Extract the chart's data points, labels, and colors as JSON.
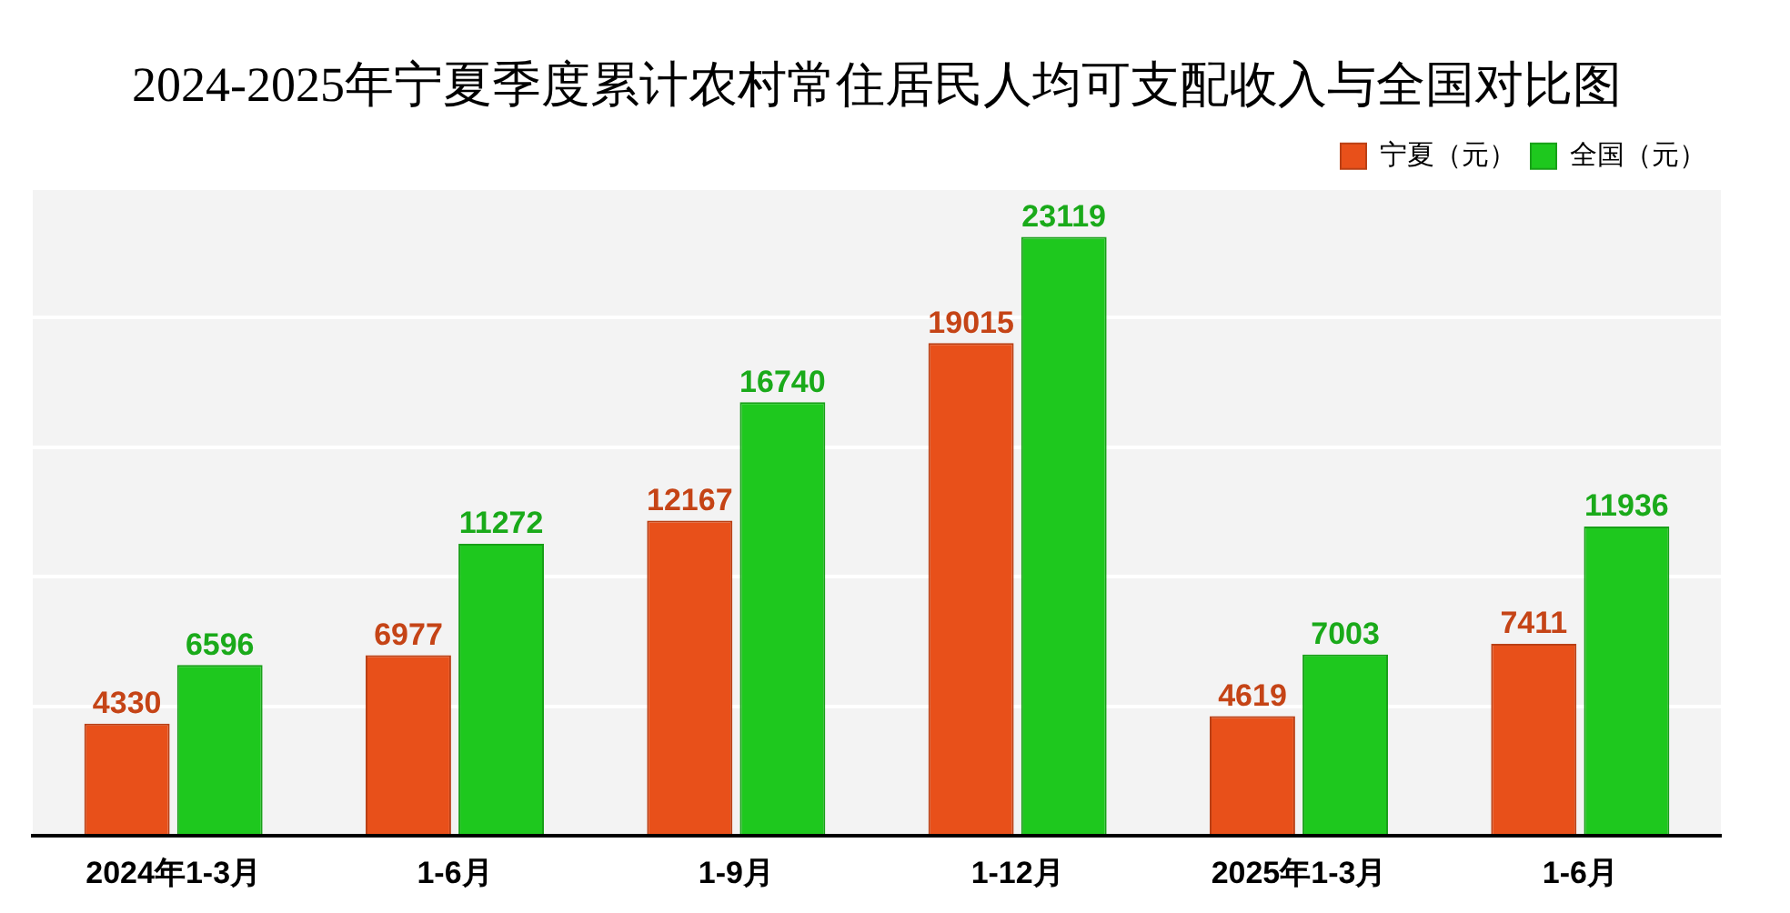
{
  "chart_data": {
    "type": "bar",
    "title": "2024-2025年宁夏季度累计农村常住居民人均可支配收入与全国对比图",
    "categories": [
      "2024年1-3月",
      "1-6月",
      "1-9月",
      "1-12月",
      "2025年1-3月",
      "1-6月"
    ],
    "series": [
      {
        "name": "宁夏（元）",
        "color": "#e8501a",
        "values": [
          4330,
          6977,
          12167,
          19015,
          4619,
          7411
        ]
      },
      {
        "name": "全国（元）",
        "color": "#1ec81e",
        "values": [
          6596,
          11272,
          16740,
          23119,
          7003,
          11936
        ]
      }
    ],
    "tick_labels": "x",
    "grid": "y",
    "legend": "top right",
    "data_labels": true
  }
}
